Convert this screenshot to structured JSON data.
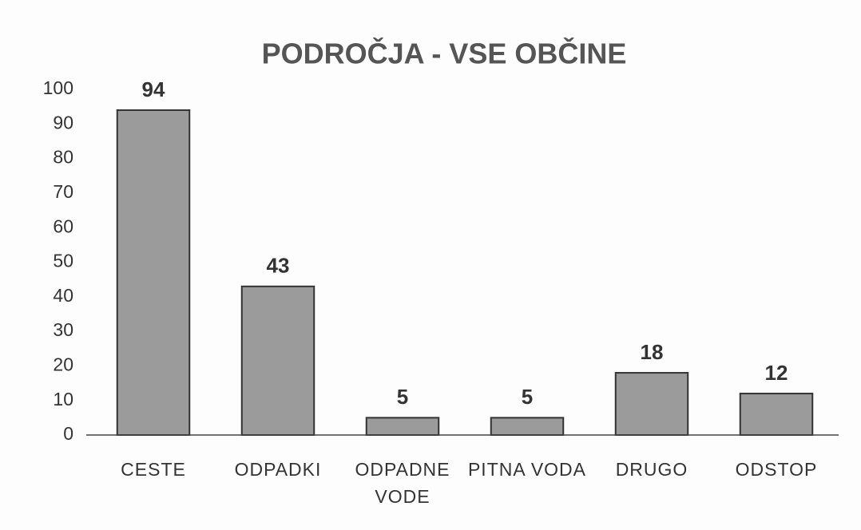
{
  "chart_data": {
    "type": "bar",
    "title": "PODROČJA - VSE OBČINE",
    "categories": [
      "CESTE",
      "ODPADKI",
      "ODPADNE VODE",
      "PITNA VODA",
      "DRUGO",
      "ODSTOP"
    ],
    "values": [
      94,
      43,
      5,
      5,
      18,
      12
    ],
    "color": "#9b9b9b",
    "ylim": [
      0,
      100
    ],
    "yticks": [
      0,
      10,
      20,
      30,
      40,
      50,
      60,
      70,
      80,
      90,
      100
    ],
    "grid": false
  }
}
